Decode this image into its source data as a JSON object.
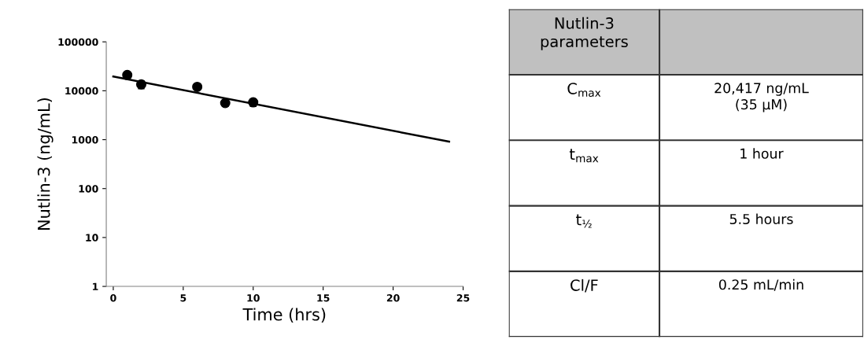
{
  "chart_data": [
    {
      "type": "scatter",
      "xlabel": "Time (hrs)",
      "ylabel": "Nutlin-3 (ng/mL)",
      "log": "y",
      "xlim": [
        -0.5,
        25
      ],
      "xticks": [
        0,
        5,
        10,
        15,
        20,
        25
      ],
      "ylim": [
        1,
        100000
      ],
      "yticks": [
        1,
        10,
        100,
        1000,
        10000,
        100000
      ],
      "grid": false,
      "legend": false,
      "marker": "circle",
      "series": [
        {
          "type": "scatter",
          "color": "#000000",
          "x": [
            1,
            2,
            6,
            8,
            10
          ],
          "values": [
            21000,
            13500,
            12000,
            5600,
            5800
          ],
          "errors": [
            3000,
            2500,
            1500,
            800,
            1000
          ]
        },
        {
          "type": "line",
          "color": "#000000",
          "x": [
            0,
            24
          ],
          "values": [
            19500,
            910
          ],
          "marker": "none"
        }
      ]
    },
    {
      "type": "other",
      "annotations": [
        "Nutlin-3\nparameters",
        "C$_{max}$",
        "20,417 ng/mL\n(35 µM)",
        "t$_{max}$",
        "1 hour",
        "t$_{½}$",
        "5.5 hours",
        "Cl/F",
        "0.25 mL/min"
      ]
    }
  ]
}
